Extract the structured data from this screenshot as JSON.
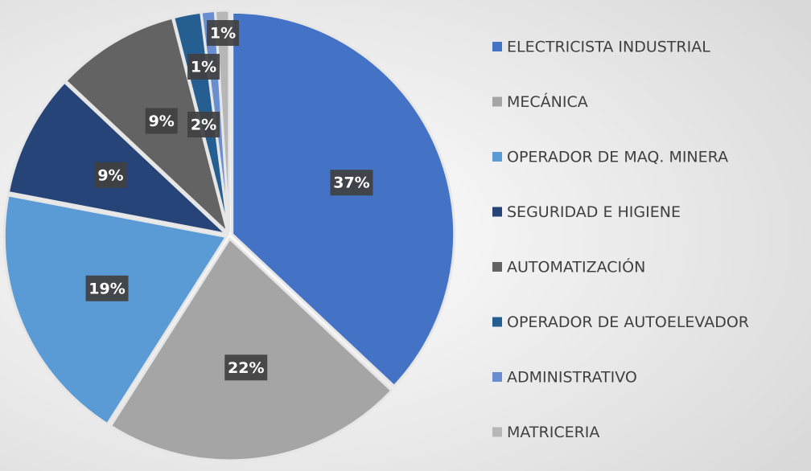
{
  "chart_data": {
    "type": "pie",
    "categories": [
      "ELECTRICISTA INDUSTRIAL",
      "MECÁNICA",
      "OPERADOR DE MAQ. MINERA",
      "SEGURIDAD E HIGIENE",
      "AUTOMATIZACIÓN",
      "OPERADOR DE AUTOELEVADOR",
      "ADMINISTRATIVO",
      "MATRICERIA"
    ],
    "values": [
      37,
      22,
      19,
      9,
      9,
      2,
      1,
      1
    ],
    "value_labels": [
      "37%",
      "22%",
      "19%",
      "9%",
      "9%",
      "2%",
      "1%",
      "1%"
    ],
    "colors": [
      "#4472c4",
      "#a5a5a5",
      "#5b9bd5",
      "#264478",
      "#636363",
      "#255e91",
      "#698ed0",
      "#b7b7b7"
    ],
    "legend": "right"
  }
}
